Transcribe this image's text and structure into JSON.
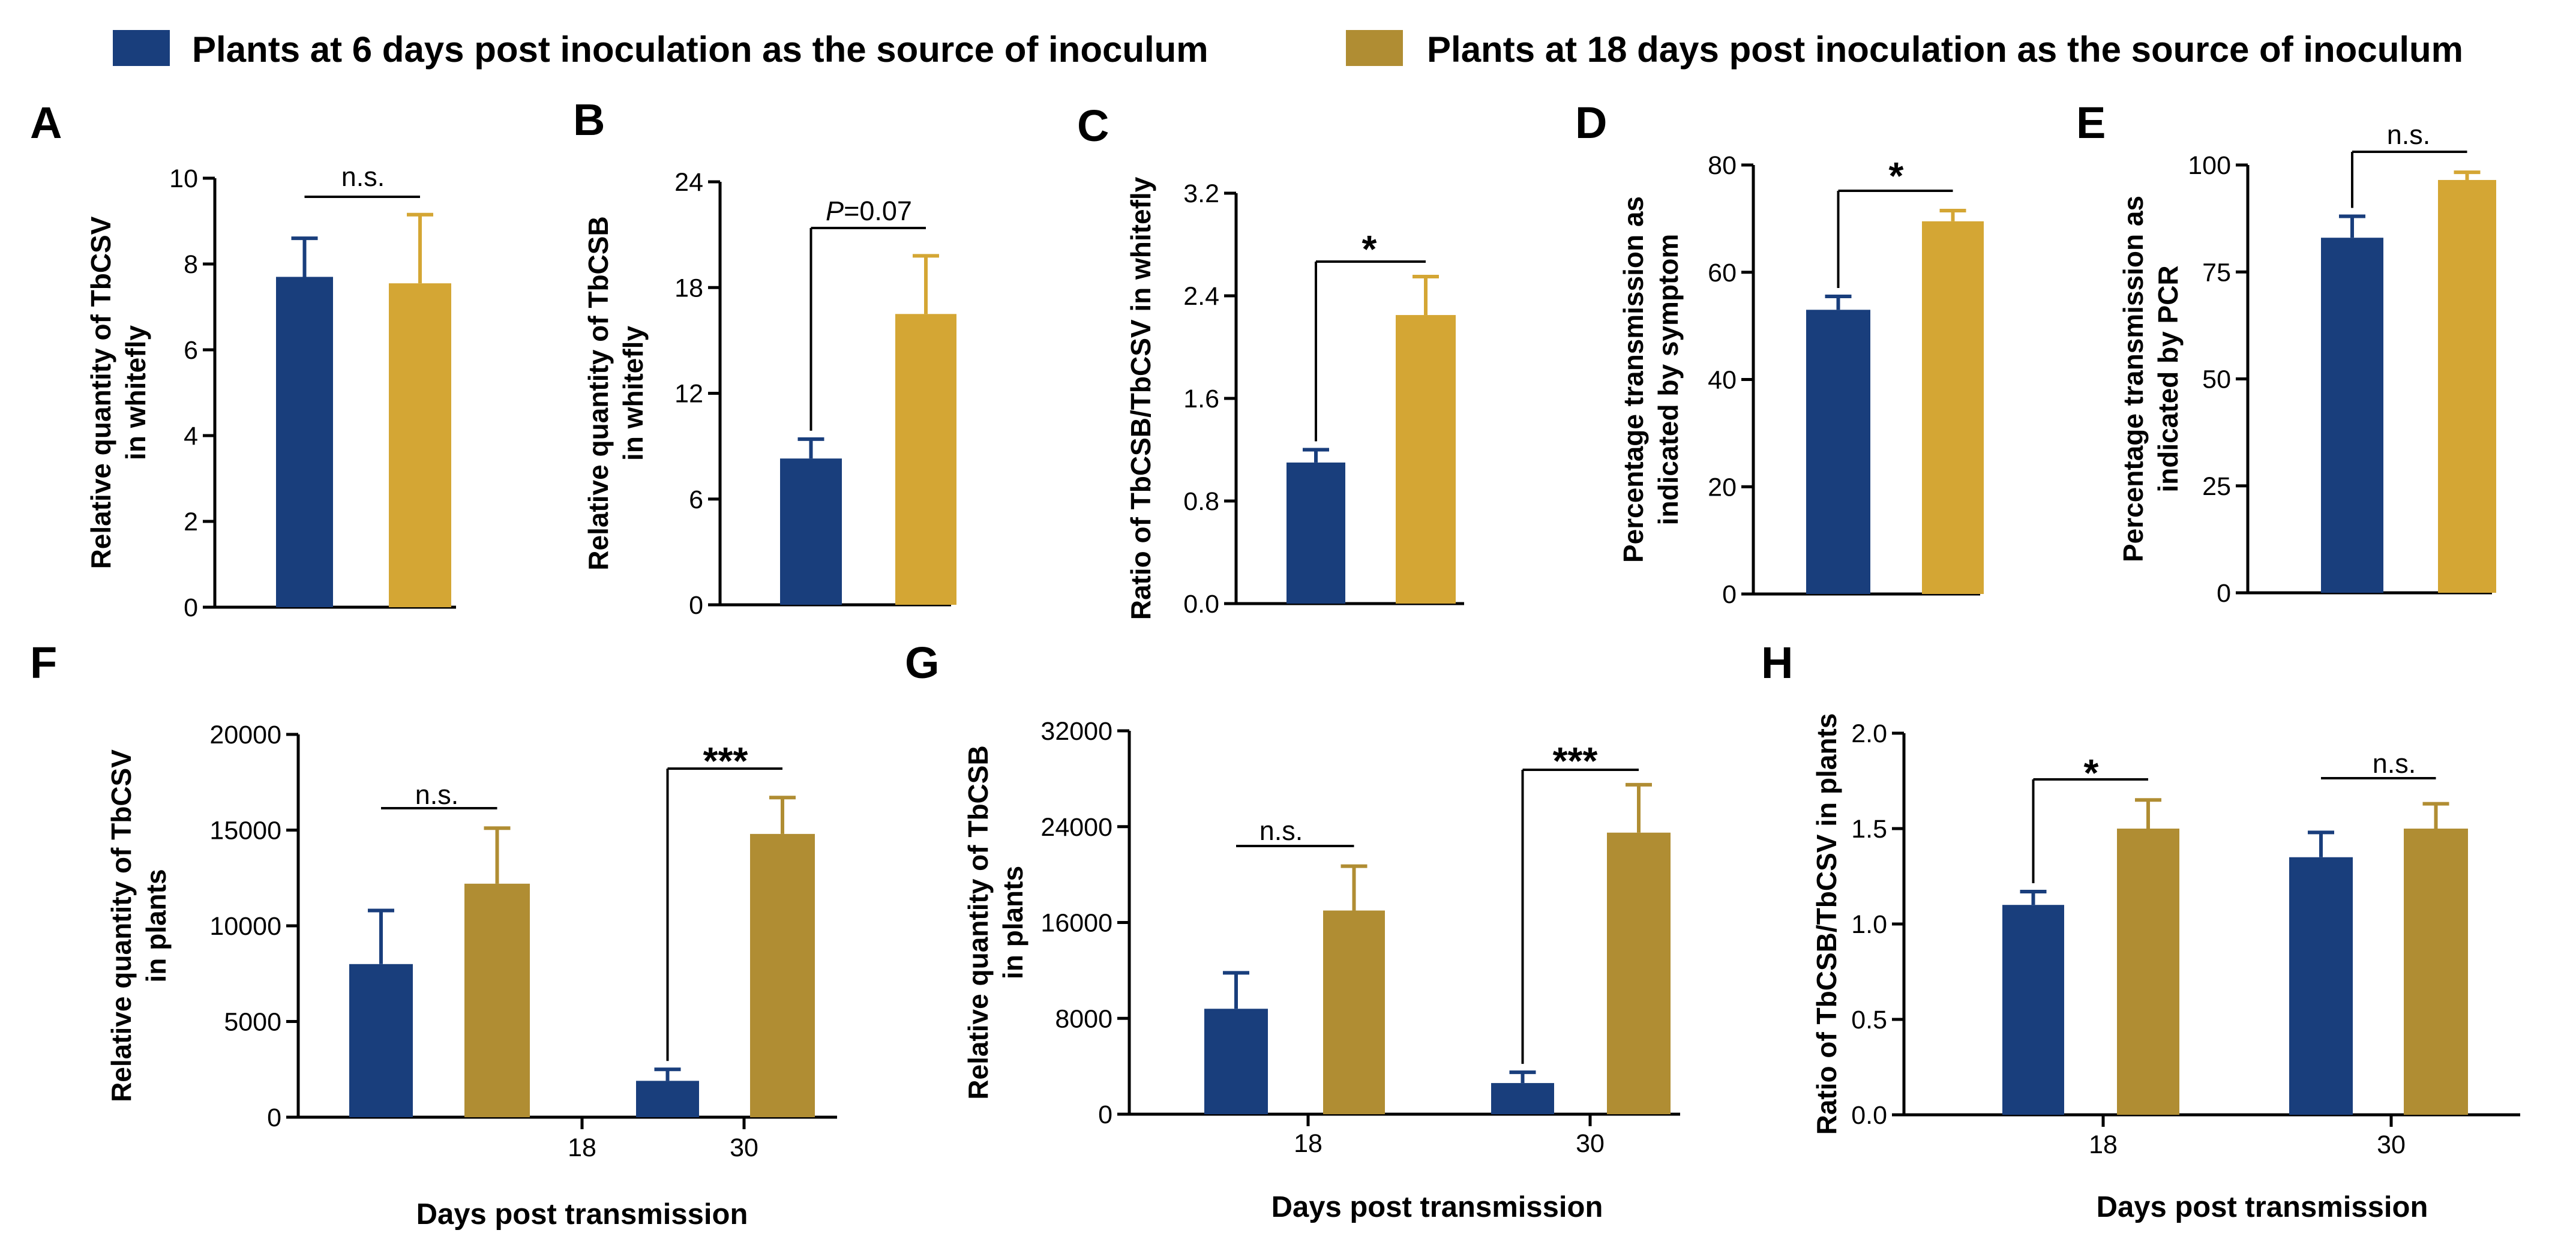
{
  "colors": {
    "group1": "#193E7C",
    "group2_light": "#D4A634",
    "group2_dark": "#B08D33",
    "axis": "#000000"
  },
  "legend": [
    {
      "label": "Plants at 6 days post inoculation as the source of inoculum",
      "color": "#193E7C"
    },
    {
      "label": "Plants at 18 days post inoculation as the source of inoculum",
      "color": "#B08D33"
    }
  ],
  "chart_data": [
    {
      "panel": "A",
      "type": "bar",
      "ylabel": [
        "Relative quantity of TbCSV",
        "in whitefly"
      ],
      "ylim": [
        0,
        10
      ],
      "yticks": [
        0,
        2,
        4,
        6,
        8,
        10
      ],
      "series": [
        {
          "name": "6 dpi source",
          "values": [
            7.7
          ],
          "errors": [
            0.9
          ]
        },
        {
          "name": "18 dpi source",
          "values": [
            7.55
          ],
          "errors": [
            1.6
          ]
        }
      ],
      "annotations": [
        {
          "text": "n.s.",
          "style": "text"
        }
      ]
    },
    {
      "panel": "B",
      "type": "bar",
      "ylabel": [
        "Relative quantity of TbCSB",
        "in whitefly"
      ],
      "ylim": [
        0,
        24
      ],
      "yticks": [
        0,
        6,
        12,
        18,
        24
      ],
      "series": [
        {
          "name": "6 dpi source",
          "values": [
            8.3
          ],
          "errors": [
            1.1
          ]
        },
        {
          "name": "18 dpi source",
          "values": [
            16.5
          ],
          "errors": [
            3.3
          ]
        }
      ],
      "annotations": [
        {
          "text": "P=0.07",
          "style": "pvalue"
        }
      ]
    },
    {
      "panel": "C",
      "type": "bar",
      "ylabel": [
        "Ratio of TbCSB/TbCSV in whitefly"
      ],
      "ylim": [
        0,
        3.2
      ],
      "yticks": [
        "0.0",
        "0.8",
        "1.6",
        "2.4",
        "3.2"
      ],
      "series": [
        {
          "name": "6 dpi source",
          "values": [
            1.1
          ],
          "errors": [
            0.1
          ]
        },
        {
          "name": "18 dpi source",
          "values": [
            2.25
          ],
          "errors": [
            0.3
          ]
        }
      ],
      "annotations": [
        {
          "text": "*",
          "style": "star"
        }
      ]
    },
    {
      "panel": "D",
      "type": "bar",
      "ylabel": [
        "Percentage transmission as",
        "indicated by symptom"
      ],
      "ylim": [
        0,
        80
      ],
      "yticks": [
        0,
        20,
        40,
        60,
        80
      ],
      "series": [
        {
          "name": "6 dpi source",
          "values": [
            53
          ],
          "errors": [
            2.5
          ]
        },
        {
          "name": "18 dpi source",
          "values": [
            69.5
          ],
          "errors": [
            2
          ]
        }
      ],
      "annotations": [
        {
          "text": "*",
          "style": "star"
        }
      ]
    },
    {
      "panel": "E",
      "type": "bar",
      "ylabel": [
        "Percentage transmission as",
        "indicated by PCR"
      ],
      "ylim": [
        0,
        100
      ],
      "yticks": [
        0,
        25,
        50,
        75,
        100
      ],
      "series": [
        {
          "name": "6 dpi source",
          "values": [
            83
          ],
          "errors": [
            5
          ]
        },
        {
          "name": "18 dpi source",
          "values": [
            96.5
          ],
          "errors": [
            1.8
          ]
        }
      ],
      "annotations": [
        {
          "text": "n.s.",
          "style": "text"
        }
      ]
    },
    {
      "panel": "F",
      "type": "bar",
      "ylabel": [
        "Relative quantity of TbCSV",
        "in plants"
      ],
      "xlabel": "Days post transmission",
      "categories": [
        "18",
        "30"
      ],
      "ylim": [
        0,
        20000
      ],
      "yticks": [
        0,
        5000,
        10000,
        15000,
        20000
      ],
      "series": [
        {
          "name": "6 dpi source",
          "values": [
            8000,
            1900
          ],
          "errors": [
            2800,
            600
          ]
        },
        {
          "name": "18 dpi source",
          "values": [
            12200,
            14800
          ],
          "errors": [
            2900,
            1900
          ]
        }
      ],
      "annotations": [
        {
          "text": "n.s.",
          "style": "text"
        },
        {
          "text": "***",
          "style": "star"
        }
      ]
    },
    {
      "panel": "G",
      "type": "bar",
      "ylabel": [
        "Relative quantity of TbCSB",
        "in plants"
      ],
      "xlabel": "Days post transmission",
      "categories": [
        "18",
        "30"
      ],
      "ylim": [
        0,
        32000
      ],
      "yticks": [
        0,
        8000,
        16000,
        24000,
        32000
      ],
      "series": [
        {
          "name": "6 dpi source",
          "values": [
            8800,
            2600
          ],
          "errors": [
            3000,
            900
          ]
        },
        {
          "name": "18 dpi source",
          "values": [
            17000,
            23500
          ],
          "errors": [
            3700,
            4000
          ]
        }
      ],
      "annotations": [
        {
          "text": "n.s.",
          "style": "text"
        },
        {
          "text": "***",
          "style": "star"
        }
      ]
    },
    {
      "panel": "H",
      "type": "bar",
      "ylabel": [
        "Ratio of TbCSB/TbCSV in plants"
      ],
      "xlabel": "Days post transmission",
      "categories": [
        "18",
        "30"
      ],
      "ylim": [
        0,
        2
      ],
      "yticks": [
        "0.0",
        "0.5",
        "1.0",
        "1.5",
        "2.0"
      ],
      "series": [
        {
          "name": "6 dpi source",
          "values": [
            1.1,
            1.35
          ],
          "errors": [
            0.07,
            0.13
          ]
        },
        {
          "name": "18 dpi source",
          "values": [
            1.5,
            1.5
          ],
          "errors": [
            0.15,
            0.13
          ]
        }
      ],
      "annotations": [
        {
          "text": "*",
          "style": "star"
        },
        {
          "text": "n.s.",
          "style": "text"
        }
      ]
    }
  ]
}
